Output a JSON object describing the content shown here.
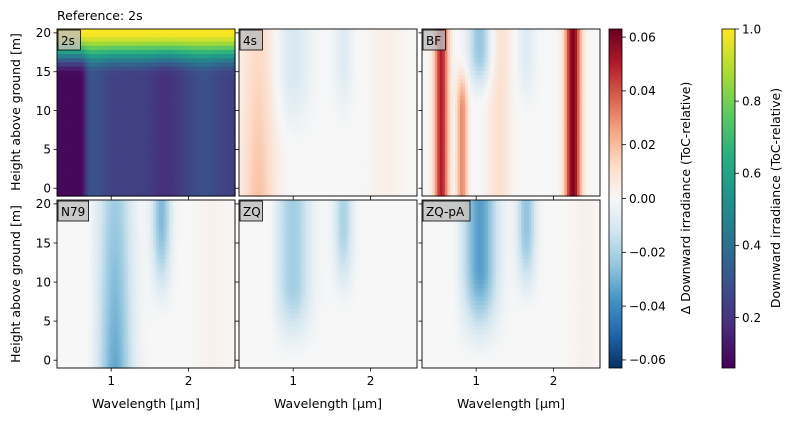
{
  "chart_data": {
    "type": "heatmap",
    "title": "Reference: 2s",
    "xlabel": "Wavelength [µm]",
    "ylabel": "Height above ground [m]",
    "xlim": [
      0.3,
      2.6
    ],
    "ylim": [
      -1,
      20.5
    ],
    "x_ticks": [
      1,
      2
    ],
    "y_ticks": [
      0,
      5,
      10,
      15,
      20
    ],
    "panels": [
      {
        "label": "2s",
        "colorbar": "absolute"
      },
      {
        "label": "4s",
        "colorbar": "delta"
      },
      {
        "label": "BF",
        "colorbar": "delta"
      },
      {
        "label": "N79",
        "colorbar": "delta"
      },
      {
        "label": "ZQ",
        "colorbar": "delta"
      },
      {
        "label": "ZQ-pA",
        "colorbar": "delta"
      }
    ],
    "colorbars": {
      "delta": {
        "label": "Δ Downward irradiance (ToC-relative)",
        "colormap": "RdBu_r",
        "range": [
          -0.063,
          0.063
        ],
        "ticks": [
          0.06,
          0.04,
          0.02,
          0.0,
          -0.02,
          -0.04,
          -0.06
        ],
        "tick_labels": [
          "0.06",
          "0.04",
          "0.02",
          "0.00",
          "−0.02",
          "−0.04",
          "−0.06"
        ]
      },
      "absolute": {
        "label": "Downward irradiance (ToC-relative)",
        "colormap": "viridis",
        "range": [
          0.06,
          1.0
        ],
        "ticks": [
          1.0,
          0.8,
          0.6,
          0.4,
          0.2
        ],
        "tick_labels": [
          "1.0",
          "0.8",
          "0.6",
          "0.4",
          "0.2"
        ]
      }
    }
  }
}
